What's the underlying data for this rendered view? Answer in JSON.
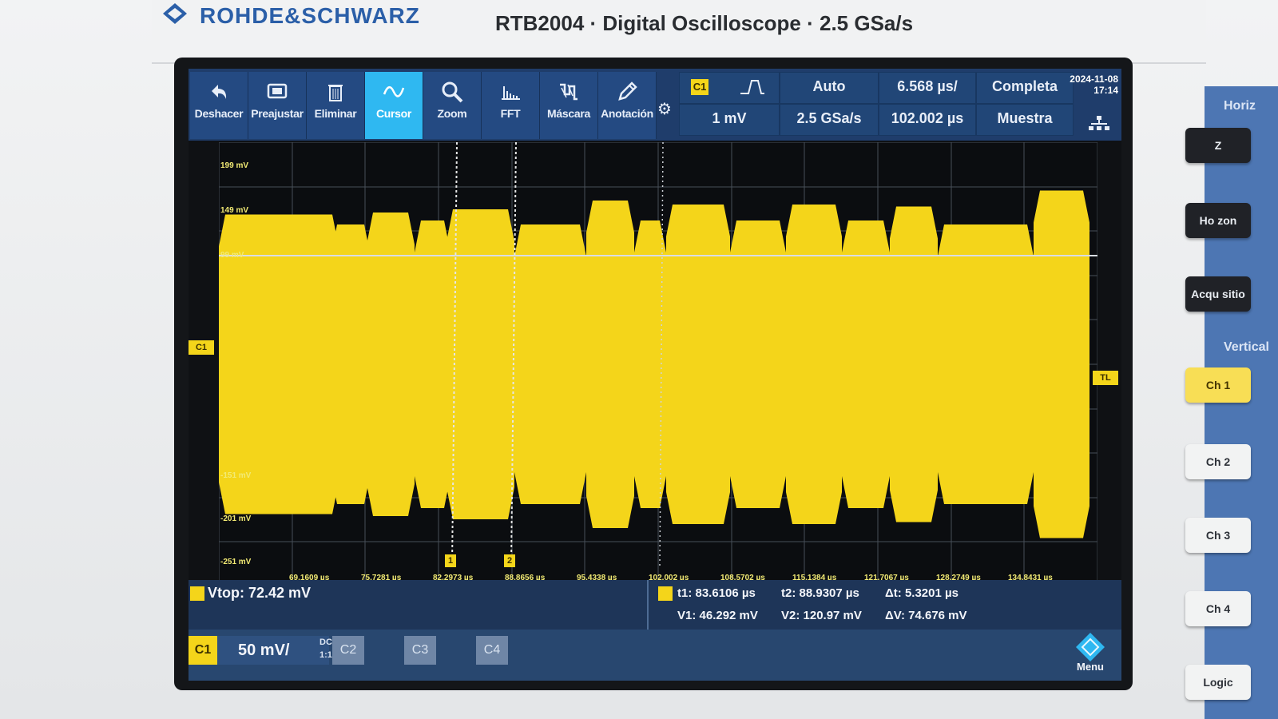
{
  "device": {
    "brand": "ROHDE&SCHWARZ",
    "model_line": "RTB2004 · Digital Oscilloscope · 2.5 GSa/s"
  },
  "toolbar": {
    "tools": [
      {
        "label": "Deshacer",
        "icon": "undo-icon"
      },
      {
        "label": "Preajustar",
        "icon": "preset-icon"
      },
      {
        "label": "Eliminar",
        "icon": "trash-icon"
      },
      {
        "label": "Cursor",
        "icon": "cursor-wave-icon"
      },
      {
        "label": "Zoom",
        "icon": "zoom-icon"
      },
      {
        "label": "FFT",
        "icon": "fft-icon"
      },
      {
        "label": "Máscara",
        "icon": "mask-icon"
      },
      {
        "label": "Anotación",
        "icon": "pencil-icon"
      }
    ],
    "trigger_source": "C1",
    "trigger_level": "1 mV",
    "trigger_mode": "Auto",
    "sample_rate": "2.5 GSa/s",
    "time_scale": "6.568 µs/",
    "time_position": "102.002 µs",
    "acq_mode": "Completa",
    "acq_type": "Muestra",
    "date": "2024-11-08",
    "time": "17:14"
  },
  "waveform": {
    "y_labels": [
      "199 mV",
      "149 mV",
      "99 mV",
      "-151 mV",
      "-201 mV",
      "-251 mV"
    ],
    "x_labels": [
      "69.1609 µs",
      "75.7281 µs",
      "82.2973 µs",
      "88.8656 µs",
      "95.4338 µs",
      "102.002 µs",
      "108.5702 µs",
      "115.1384 µs",
      "121.7067 µs",
      "128.2749 µs",
      "134.8431 µs"
    ],
    "channel_marker": "C1",
    "trigger_marker": "TL",
    "cursor_t1_marker": "1",
    "cursor_t2_marker": "2",
    "envelope_color": "#f4d51a"
  },
  "measurement": {
    "vtop": "Vtop: 72.42 mV",
    "t1": "t1: 83.6106 µs",
    "t2": "t2: 88.9307 µs",
    "dt": "Δt: 5.3201 µs",
    "v1": "V1: 46.292 mV",
    "v2": "V2: 120.97 mV",
    "dv": "ΔV: 74.676 mV"
  },
  "channels": {
    "c1_label": "C1",
    "c1_scale": "50 mV/",
    "c1_coupling": "DC",
    "c1_probe": "1:1",
    "c2_label": "C2",
    "c3_label": "C3",
    "c4_label": "C4",
    "menu_label": "Menu"
  },
  "side_panel": {
    "horizontal_title": "Horiz",
    "buttons_top": [
      "Z",
      "Ho zon",
      "Acqu sitio"
    ],
    "vertical_title": "Vertical",
    "buttons_channels": [
      "Ch 1",
      "Ch 2",
      "Ch 3",
      "Ch 4",
      "Logic"
    ]
  }
}
